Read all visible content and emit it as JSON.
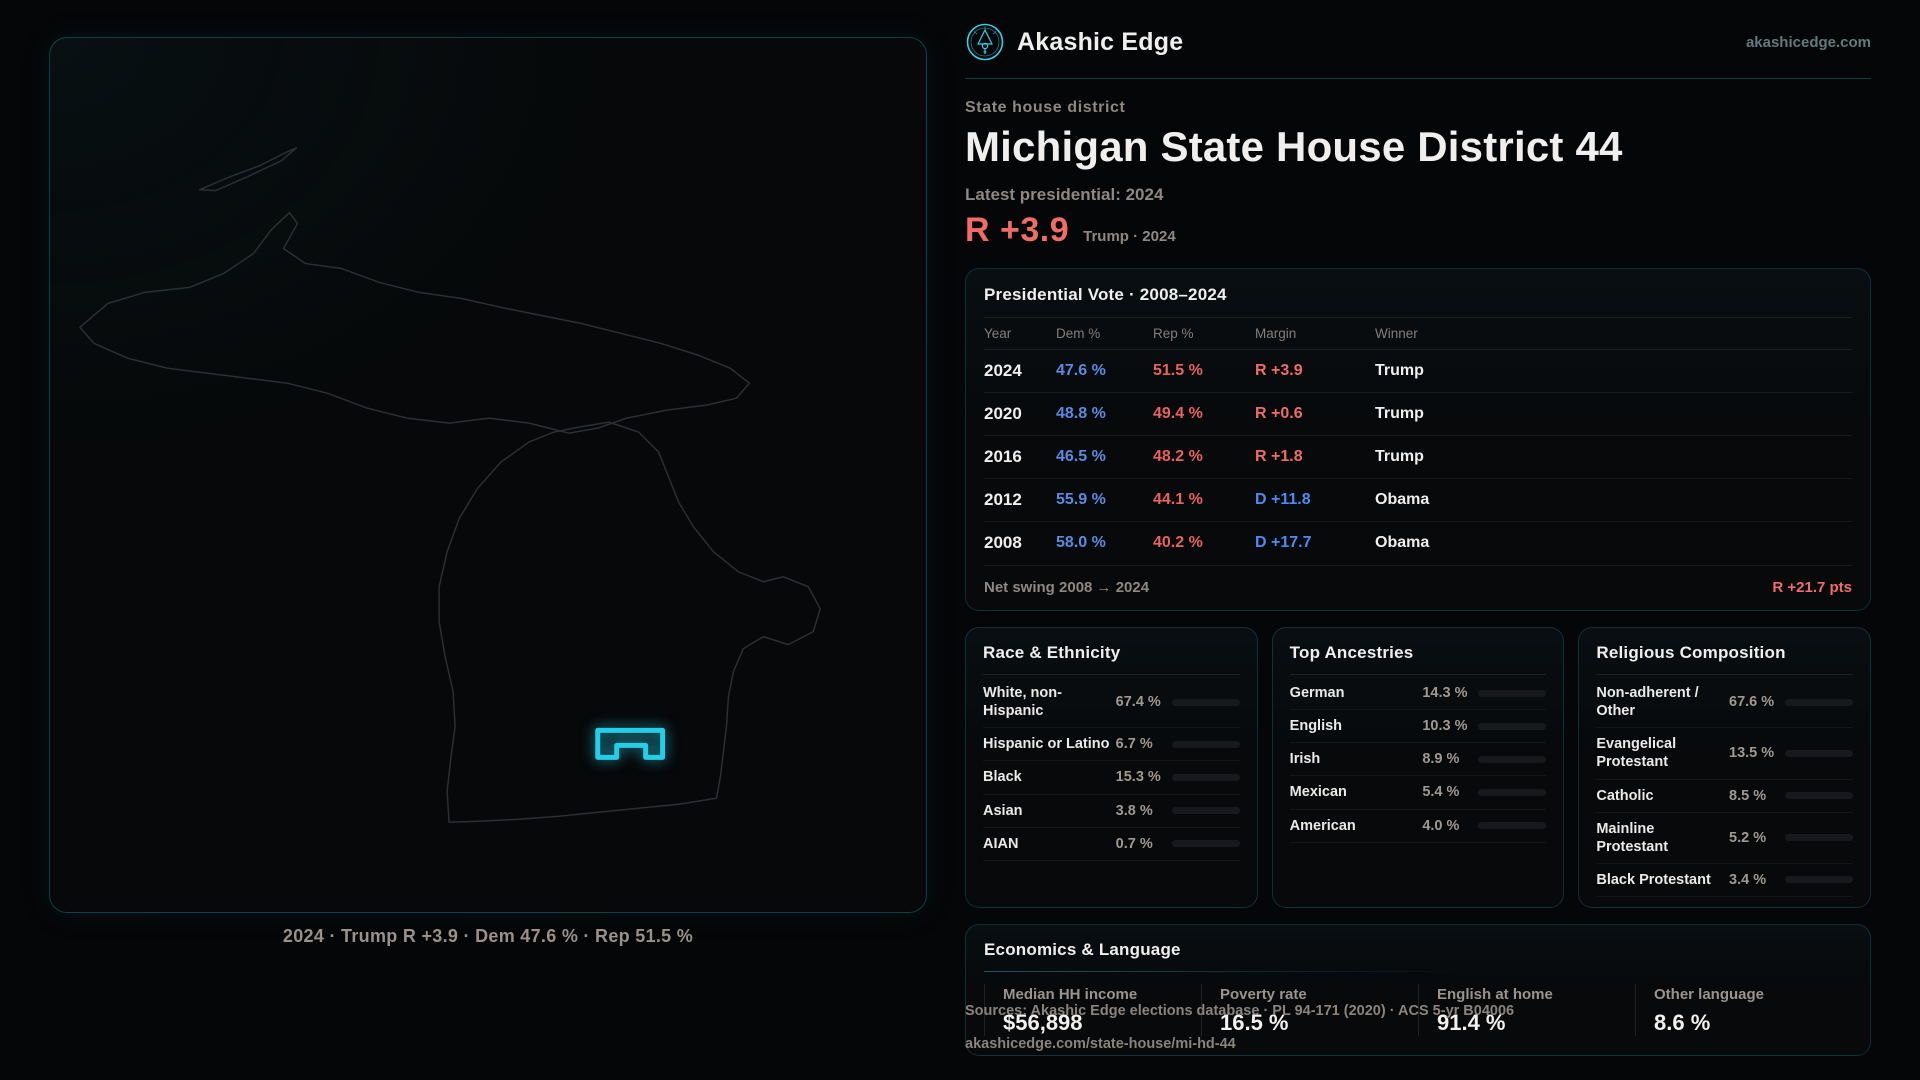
{
  "brand": {
    "name": "Akashic Edge",
    "domain": "akashicedge.com"
  },
  "header": {
    "kicker": "State house district",
    "title": "Michigan State House District 44",
    "latest_label": "Latest presidential: 2024",
    "margin_value": "R +3.9",
    "margin_context": "Trump · 2024"
  },
  "map": {
    "caption": "2024 · Trump R +3.9 · Dem 47.6 % · Rep 51.5 %",
    "accent_color": "#24cde8",
    "outline_color": "#2c2f33"
  },
  "presidential_table": {
    "title": "Presidential Vote · 2008–2024",
    "columns": {
      "year": "Year",
      "dem": "Dem %",
      "rep": "Rep %",
      "margin": "Margin",
      "winner": "Winner"
    },
    "rows": [
      {
        "year": "2024",
        "dem": "47.6 %",
        "rep": "51.5 %",
        "margin": "R +3.9",
        "margin_color": "#ef6d66",
        "winner": "Trump"
      },
      {
        "year": "2020",
        "dem": "48.8 %",
        "rep": "49.4 %",
        "margin": "R +0.6",
        "margin_color": "#ef6d66",
        "winner": "Trump"
      },
      {
        "year": "2016",
        "dem": "46.5 %",
        "rep": "48.2 %",
        "margin": "R +1.8",
        "margin_color": "#ef6d66",
        "winner": "Trump"
      },
      {
        "year": "2012",
        "dem": "55.9 %",
        "rep": "44.1 %",
        "margin": "D +11.8",
        "margin_color": "#4d8bf0",
        "winner": "Obama"
      },
      {
        "year": "2008",
        "dem": "58.0 %",
        "rep": "40.2 %",
        "margin": "D +17.7",
        "margin_color": "#4d8bf0",
        "winner": "Obama"
      }
    ],
    "footer_label": "Net swing 2008 → 2024",
    "footer_value": "R +21.7 pts"
  },
  "race": {
    "title": "Race & Ethnicity",
    "rows": [
      {
        "label": "White, non-Hispanic",
        "value": "67.4 %",
        "pct": 67.4,
        "color": "#8b9ab5"
      },
      {
        "label": "Hispanic or Latino",
        "value": "6.7 %",
        "pct": 6.7,
        "color": "#e39a3b"
      },
      {
        "label": "Black",
        "value": "15.3 %",
        "pct": 15.3,
        "color": "#8f7df2"
      },
      {
        "label": "Asian",
        "value": "3.8 %",
        "pct": 3.8,
        "color": "#2ad3a2"
      },
      {
        "label": "AIAN",
        "value": "0.7 %",
        "pct": 0.7,
        "color": "#c07a36"
      }
    ]
  },
  "ancestries": {
    "title": "Top Ancestries",
    "rows": [
      {
        "label": "German",
        "value": "14.3 %",
        "pct": 14.3,
        "color": "#8099b5"
      },
      {
        "label": "English",
        "value": "10.3 %",
        "pct": 10.3,
        "color": "#8099b5"
      },
      {
        "label": "Irish",
        "value": "8.9 %",
        "pct": 8.9,
        "color": "#8099b5"
      },
      {
        "label": "Mexican",
        "value": "5.4 %",
        "pct": 5.4,
        "color": "#e8a33d"
      },
      {
        "label": "American",
        "value": "4.0 %",
        "pct": 4.0,
        "color": "#6e82a0"
      }
    ]
  },
  "religion": {
    "title": "Religious Composition",
    "rows": [
      {
        "label": "Non-adherent / Other",
        "value": "67.6 %",
        "pct": 67.6,
        "color": "#8b93a8"
      },
      {
        "label": "Evangelical Protestant",
        "value": "13.5 %",
        "pct": 13.5,
        "color": "#e06462"
      },
      {
        "label": "Catholic",
        "value": "8.5 %",
        "pct": 8.5,
        "color": "#e8b23c"
      },
      {
        "label": "Mainline Protestant",
        "value": "5.2 %",
        "pct": 5.2,
        "color": "#4f86e8"
      },
      {
        "label": "Black Protestant",
        "value": "3.4 %",
        "pct": 3.4,
        "color": "#8f7df2"
      }
    ]
  },
  "economics": {
    "title": "Economics & Language",
    "stats": [
      {
        "label": "Median HH income",
        "value": "$56,898"
      },
      {
        "label": "Poverty rate",
        "value": "16.5 %"
      },
      {
        "label": "English at home",
        "value": "91.4 %"
      },
      {
        "label": "Other language",
        "value": "8.6 %"
      }
    ]
  },
  "footer": {
    "line1": "Sources: Akashic Edge elections database · PL 94-171 (2020) · ACS 5-yr B04006",
    "line2": "akashicedge.com/state-house/mi-hd-44"
  }
}
